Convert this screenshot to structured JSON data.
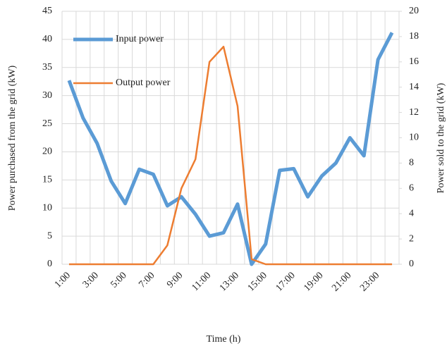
{
  "chart_data": {
    "type": "line",
    "xlabel": "Time (h)",
    "ylabel": "Power purchased from the grid (kW)",
    "y2label": "Power sold to the grid (kW)",
    "categories": [
      "1:00",
      null,
      "3:00",
      null,
      "5:00",
      null,
      "7:00",
      null,
      "9:00",
      null,
      "11:00",
      null,
      "13:00",
      null,
      "15:00",
      null,
      "17:00",
      null,
      "19:00",
      null,
      "21:00",
      null,
      "23:00",
      null
    ],
    "series": [
      {
        "name": "Input power",
        "color": "#5b9bd5",
        "values": [
          32.7,
          26,
          21.5,
          14.8,
          10.8,
          16.9,
          16,
          10.4,
          12,
          8.9,
          5,
          5.6,
          10.7,
          0,
          3.6,
          16.7,
          17,
          12,
          15.7,
          18,
          22.5,
          19.3,
          36.4,
          41.2
        ]
      },
      {
        "name": "Output power",
        "color": "#ed7d31",
        "axis": "y2",
        "values": [
          0,
          0,
          0,
          0,
          0,
          0,
          0,
          1.5,
          6,
          8.3,
          16,
          17.2,
          12.5,
          0.4,
          0,
          0,
          0,
          0,
          0,
          0,
          0,
          0,
          0,
          0
        ]
      }
    ],
    "ylim": [
      0,
      45
    ],
    "yticks": [
      0,
      5,
      10,
      15,
      20,
      25,
      30,
      35,
      40,
      45
    ],
    "y2lim": [
      0,
      20
    ],
    "y2ticks": [
      0,
      2,
      4,
      6,
      8,
      10,
      12,
      14,
      16,
      18,
      20
    ],
    "grid": true,
    "legend": "upper left"
  }
}
